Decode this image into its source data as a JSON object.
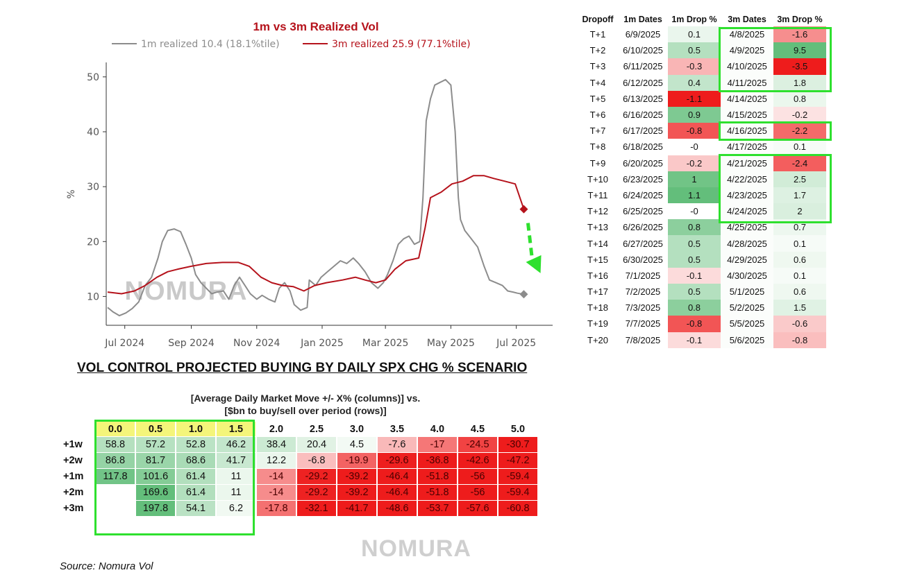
{
  "chart_data": {
    "type": "line",
    "title": "1m vs 3m Realized Vol",
    "ylabel": "%",
    "xlabel": "",
    "ylim": [
      5,
      52
    ],
    "yticks": [
      10,
      20,
      30,
      40,
      50
    ],
    "xlim": [
      "2024-06-15",
      "2025-07-31"
    ],
    "xticks": [
      {
        "date": "2024-07-01",
        "label": "Jul 2024"
      },
      {
        "date": "2024-09-01",
        "label": "Sep 2024"
      },
      {
        "date": "2024-11-01",
        "label": "Nov 2024"
      },
      {
        "date": "2025-01-01",
        "label": "Jan 2025"
      },
      {
        "date": "2025-03-01",
        "label": "Mar 2025"
      },
      {
        "date": "2025-05-01",
        "label": "May 2025"
      },
      {
        "date": "2025-07-01",
        "label": "Jul 2025"
      }
    ],
    "grid": false,
    "legend_position": "top",
    "watermark": "NOMURA",
    "series": [
      {
        "name": "1m realized 10.4 (18.1%tile)",
        "color": "#8c8c8c",
        "points": [
          [
            "2024-06-15",
            8.0
          ],
          [
            "2024-06-20",
            7.2
          ],
          [
            "2024-06-26",
            6.5
          ],
          [
            "2024-07-02",
            7.0
          ],
          [
            "2024-07-08",
            7.8
          ],
          [
            "2024-07-14",
            9.0
          ],
          [
            "2024-07-20",
            12.0
          ],
          [
            "2024-07-26",
            13.5
          ],
          [
            "2024-08-01",
            17.0
          ],
          [
            "2024-08-05",
            20.0
          ],
          [
            "2024-08-10",
            22.0
          ],
          [
            "2024-08-16",
            22.3
          ],
          [
            "2024-08-22",
            21.8
          ],
          [
            "2024-08-27",
            19.5
          ],
          [
            "2024-09-01",
            17.0
          ],
          [
            "2024-09-05",
            14.0
          ],
          [
            "2024-09-10",
            12.5
          ],
          [
            "2024-09-15",
            11.5
          ],
          [
            "2024-09-20",
            10.5
          ],
          [
            "2024-09-25",
            10.8
          ],
          [
            "2024-10-01",
            11.0
          ],
          [
            "2024-10-06",
            9.5
          ],
          [
            "2024-10-11",
            12.0
          ],
          [
            "2024-10-16",
            13.5
          ],
          [
            "2024-10-21",
            12.0
          ],
          [
            "2024-10-26",
            10.5
          ],
          [
            "2024-11-01",
            9.5
          ],
          [
            "2024-11-06",
            10.2
          ],
          [
            "2024-11-12",
            9.5
          ],
          [
            "2024-11-18",
            9.0
          ],
          [
            "2024-11-22",
            11.5
          ],
          [
            "2024-11-27",
            12.5
          ],
          [
            "2024-12-02",
            11.0
          ],
          [
            "2024-12-06",
            8.5
          ],
          [
            "2024-12-12",
            7.5
          ],
          [
            "2024-12-18",
            8.0
          ],
          [
            "2024-12-20",
            13.0
          ],
          [
            "2024-12-26",
            12.0
          ],
          [
            "2024-12-31",
            13.5
          ],
          [
            "2025-01-06",
            14.5
          ],
          [
            "2025-01-12",
            15.5
          ],
          [
            "2025-01-18",
            16.5
          ],
          [
            "2025-01-24",
            16.0
          ],
          [
            "2025-01-30",
            17.0
          ],
          [
            "2025-02-04",
            16.0
          ],
          [
            "2025-02-10",
            14.5
          ],
          [
            "2025-02-16",
            12.5
          ],
          [
            "2025-02-22",
            11.5
          ],
          [
            "2025-02-27",
            12.5
          ],
          [
            "2025-03-03",
            14.0
          ],
          [
            "2025-03-08",
            16.5
          ],
          [
            "2025-03-13",
            19.5
          ],
          [
            "2025-03-18",
            20.5
          ],
          [
            "2025-03-23",
            21.0
          ],
          [
            "2025-03-28",
            19.5
          ],
          [
            "2025-04-02",
            20.0
          ],
          [
            "2025-04-05",
            28.0
          ],
          [
            "2025-04-08",
            42.0
          ],
          [
            "2025-04-12",
            46.0
          ],
          [
            "2025-04-16",
            48.5
          ],
          [
            "2025-04-21",
            49.0
          ],
          [
            "2025-04-26",
            49.5
          ],
          [
            "2025-05-01",
            48.5
          ],
          [
            "2025-05-05",
            40.0
          ],
          [
            "2025-05-08",
            28.0
          ],
          [
            "2025-05-10",
            24.0
          ],
          [
            "2025-05-14",
            22.0
          ],
          [
            "2025-05-20",
            20.5
          ],
          [
            "2025-05-26",
            19.0
          ],
          [
            "2025-06-01",
            15.5
          ],
          [
            "2025-06-06",
            13.0
          ],
          [
            "2025-06-12",
            12.5
          ],
          [
            "2025-06-18",
            12.0
          ],
          [
            "2025-06-23",
            11.0
          ],
          [
            "2025-06-28",
            10.8
          ],
          [
            "2025-07-02",
            10.6
          ],
          [
            "2025-07-08",
            10.4
          ]
        ],
        "end_marker": "diamond"
      },
      {
        "name": "3m realized 25.9 (77.1%tile)",
        "color": "#b5121b",
        "points": [
          [
            "2024-06-15",
            10.8
          ],
          [
            "2024-06-28",
            10.5
          ],
          [
            "2024-07-10",
            11.0
          ],
          [
            "2024-07-20",
            12.0
          ],
          [
            "2024-07-31",
            13.5
          ],
          [
            "2024-08-10",
            14.5
          ],
          [
            "2024-08-20",
            15.0
          ],
          [
            "2024-09-01",
            15.5
          ],
          [
            "2024-09-15",
            16.0
          ],
          [
            "2024-09-30",
            16.2
          ],
          [
            "2024-10-15",
            16.2
          ],
          [
            "2024-10-25",
            15.5
          ],
          [
            "2024-11-05",
            13.5
          ],
          [
            "2024-11-15",
            12.5
          ],
          [
            "2024-11-25",
            12.0
          ],
          [
            "2024-12-05",
            11.8
          ],
          [
            "2024-12-15",
            11.0
          ],
          [
            "2024-12-25",
            12.0
          ],
          [
            "2025-01-05",
            12.5
          ],
          [
            "2025-01-20",
            13.0
          ],
          [
            "2025-02-01",
            13.5
          ],
          [
            "2025-02-10",
            13.0
          ],
          [
            "2025-02-20",
            12.5
          ],
          [
            "2025-03-01",
            13.0
          ],
          [
            "2025-03-10",
            15.0
          ],
          [
            "2025-03-20",
            16.5
          ],
          [
            "2025-04-01",
            17.0
          ],
          [
            "2025-04-07",
            22.5
          ],
          [
            "2025-04-12",
            28.0
          ],
          [
            "2025-04-22",
            29.0
          ],
          [
            "2025-05-02",
            30.5
          ],
          [
            "2025-05-12",
            31.0
          ],
          [
            "2025-05-22",
            32.0
          ],
          [
            "2025-06-01",
            32.0
          ],
          [
            "2025-06-10",
            31.5
          ],
          [
            "2025-06-20",
            31.0
          ],
          [
            "2025-06-30",
            30.5
          ],
          [
            "2025-07-08",
            25.9
          ]
        ],
        "end_marker": "diamond"
      }
    ],
    "projection_arrow": {
      "color": "#2ee02e",
      "from": [
        "2025-07-08",
        25.9
      ],
      "to": [
        "2025-07-21",
        15.0
      ]
    }
  },
  "dropoff_table": {
    "headers": [
      "Dropoff",
      "1m Dates",
      "1m Drop %",
      "3m Dates",
      "3m Drop %"
    ],
    "rows": [
      [
        "T+1",
        "6/9/2025",
        "0.1",
        "4/8/2025",
        "-1.6"
      ],
      [
        "T+2",
        "6/10/2025",
        "0.5",
        "4/9/2025",
        "9.5"
      ],
      [
        "T+3",
        "6/11/2025",
        "-0.3",
        "4/10/2025",
        "-3.5"
      ],
      [
        "T+4",
        "6/12/2025",
        "0.4",
        "4/11/2025",
        "1.8"
      ],
      [
        "T+5",
        "6/13/2025",
        "-1.1",
        "4/14/2025",
        "0.8"
      ],
      [
        "T+6",
        "6/16/2025",
        "0.9",
        "4/15/2025",
        "-0.2"
      ],
      [
        "T+7",
        "6/17/2025",
        "-0.8",
        "4/16/2025",
        "-2.2"
      ],
      [
        "T+8",
        "6/18/2025",
        "-0",
        "4/17/2025",
        "0.1"
      ],
      [
        "T+9",
        "6/20/2025",
        "-0.2",
        "4/21/2025",
        "-2.4"
      ],
      [
        "T+10",
        "6/23/2025",
        "1",
        "4/22/2025",
        "2.5"
      ],
      [
        "T+11",
        "6/24/2025",
        "1.1",
        "4/23/2025",
        "1.7"
      ],
      [
        "T+12",
        "6/25/2025",
        "-0",
        "4/24/2025",
        "2"
      ],
      [
        "T+13",
        "6/26/2025",
        "0.8",
        "4/25/2025",
        "0.7"
      ],
      [
        "T+14",
        "6/27/2025",
        "0.5",
        "4/28/2025",
        "0.1"
      ],
      [
        "T+15",
        "6/30/2025",
        "0.5",
        "4/29/2025",
        "0.6"
      ],
      [
        "T+16",
        "7/1/2025",
        "-0.1",
        "4/30/2025",
        "0.1"
      ],
      [
        "T+17",
        "7/2/2025",
        "0.5",
        "5/1/2025",
        "0.6"
      ],
      [
        "T+18",
        "7/3/2025",
        "0.8",
        "5/2/2025",
        "1.5"
      ],
      [
        "T+19",
        "7/7/2025",
        "-0.8",
        "5/5/2025",
        "-0.6"
      ],
      [
        "T+20",
        "7/8/2025",
        "-0.1",
        "5/6/2025",
        "-0.8"
      ]
    ],
    "highlight_color": "#2ee02e"
  },
  "scenario": {
    "title": "VOL CONTROL PROJECTED BUYING BY DAILY SPX CHG % SCENARIO",
    "subtitle_line1": "[Average Daily Market Move +/- X% (columns)] vs.",
    "subtitle_line2": "[$bn to buy/sell over period (rows)]",
    "columns": [
      "0.0",
      "0.5",
      "1.0",
      "1.5",
      "2.0",
      "2.5",
      "3.0",
      "3.5",
      "4.0",
      "4.5",
      "5.0"
    ],
    "rows": [
      {
        "label": "+1w",
        "values": [
          "58.8",
          "57.2",
          "52.8",
          "46.2",
          "38.4",
          "20.4",
          "4.5",
          "-7.6",
          "-17",
          "-24.5",
          "-30.7"
        ]
      },
      {
        "label": "+2w",
        "values": [
          "86.8",
          "81.7",
          "68.6",
          "41.7",
          "12.2",
          "-6.8",
          "-19.9",
          "-29.6",
          "-36.8",
          "-42.6",
          "-47.2"
        ]
      },
      {
        "label": "+1m",
        "values": [
          "117.8",
          "101.6",
          "61.4",
          "11",
          "-14",
          "-29.2",
          "-39.2",
          "-46.4",
          "-51.8",
          "-56",
          "-59.4"
        ]
      },
      {
        "label": "+2m",
        "values": [
          "",
          "169.6",
          "61.4",
          "11",
          "-14",
          "-29.2",
          "-39.2",
          "-46.4",
          "-51.8",
          "-56",
          "-59.4"
        ]
      },
      {
        "label": "+3m",
        "values": [
          "",
          "197.8",
          "54.1",
          "6.2",
          "-17.8",
          "-32.1",
          "-41.7",
          "-48.6",
          "-53.7",
          "-57.6",
          "-60.8"
        ]
      }
    ],
    "header_highlight_color": "#f4f57a",
    "highlight_color": "#2ee02e",
    "watermark": "NOMURA"
  },
  "source": "Source: Nomura Vol"
}
